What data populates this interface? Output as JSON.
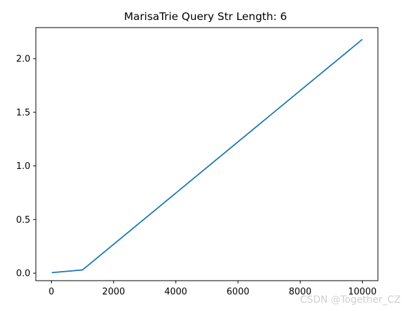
{
  "chart_data": {
    "type": "line",
    "title": "MarisaTrie Query Str Length: 6",
    "xlabel": "",
    "ylabel": "",
    "xlim": [
      -500,
      10500
    ],
    "ylim": [
      -0.07,
      2.29
    ],
    "xticks": [
      0,
      2000,
      4000,
      6000,
      8000,
      10000
    ],
    "yticks": [
      0.0,
      0.5,
      1.0,
      1.5,
      2.0
    ],
    "xtick_labels": [
      "0",
      "2000",
      "4000",
      "6000",
      "8000",
      "10000"
    ],
    "ytick_labels": [
      "0.0",
      "0.5",
      "1.0",
      "1.5",
      "2.0"
    ],
    "grid": false,
    "series": [
      {
        "color": "#1f77b4",
        "x": [
          10,
          1000,
          10000
        ],
        "y": [
          0.005,
          0.03,
          2.18
        ]
      }
    ]
  },
  "watermark": "CSDN @Together_CZ"
}
